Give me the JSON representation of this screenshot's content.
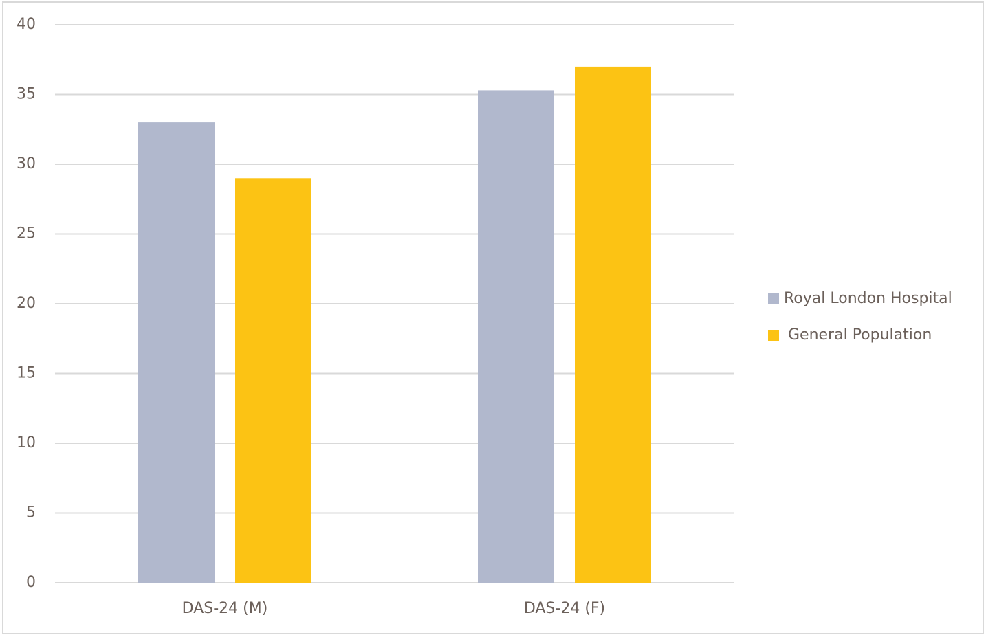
{
  "chart_data": {
    "type": "bar",
    "categories": [
      "DAS-24 (M)",
      "DAS-24 (F)"
    ],
    "series": [
      {
        "name": "Royal London Hospital",
        "color": "#b1b8cd",
        "values": [
          33,
          35.3
        ]
      },
      {
        "name": "General Population",
        "color": "#fcc314",
        "values": [
          29,
          37
        ]
      }
    ],
    "ylim": [
      0,
      40
    ],
    "yticks": [
      0,
      5,
      10,
      15,
      20,
      25,
      30,
      35,
      40
    ],
    "grid": true,
    "legend": "right"
  }
}
